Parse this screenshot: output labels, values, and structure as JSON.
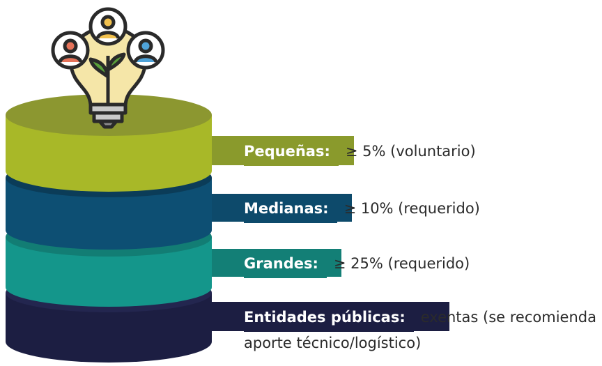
{
  "tiers": [
    {
      "label": "Pequeñas:",
      "description": "≥ 5% (voluntario)"
    },
    {
      "label": "Medianas:",
      "description": "≥ 10% (requerido)"
    },
    {
      "label": "Grandes:",
      "description": "≥ 25% (requerido)"
    },
    {
      "label": "Entidades públicas:",
      "description": "exentas (se recomienda aporte técnico/logístico)"
    }
  ]
}
